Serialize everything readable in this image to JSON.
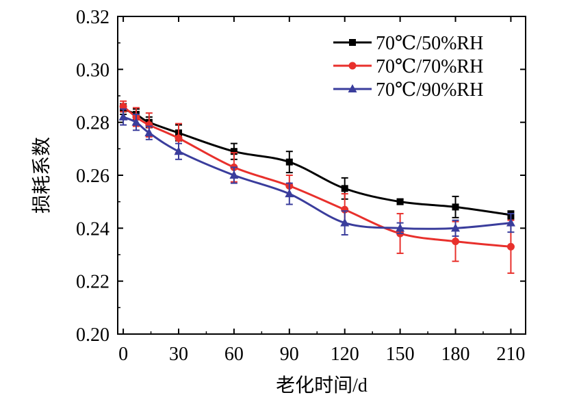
{
  "chart_data": {
    "type": "line",
    "title": "",
    "xlabel": "老化时间/d",
    "ylabel": "损耗系数",
    "x_ticks": [
      "0",
      "30",
      "60",
      "90",
      "120",
      "150",
      "180",
      "210"
    ],
    "y_ticks": [
      "0.20",
      "0.22",
      "0.24",
      "0.26",
      "0.28",
      "0.30",
      "0.32"
    ],
    "xlim": [
      -3,
      218
    ],
    "ylim": [
      0.2,
      0.32
    ],
    "grid": false,
    "legend_position": "top-right",
    "series": [
      {
        "name": "70℃/50%RH",
        "color": "#000000",
        "marker": "square",
        "x": [
          0,
          7,
          14,
          30,
          60,
          90,
          120,
          150,
          180,
          210
        ],
        "y": [
          0.285,
          0.283,
          0.28,
          0.276,
          0.269,
          0.265,
          0.255,
          0.25,
          0.248,
          0.245
        ],
        "err": [
          0.002,
          0.002,
          0.002,
          0.003,
          0.003,
          0.004,
          0.004,
          0.001,
          0.004,
          0.0015
        ]
      },
      {
        "name": "70℃/70%RH",
        "color": "#e8302c",
        "marker": "circle",
        "x": [
          0,
          7,
          14,
          30,
          60,
          90,
          120,
          150,
          180,
          210
        ],
        "y": [
          0.286,
          0.282,
          0.279,
          0.274,
          0.263,
          0.256,
          0.247,
          0.238,
          0.235,
          0.233
        ],
        "err": [
          0.002,
          0.0035,
          0.0045,
          0.0055,
          0.0055,
          0.004,
          0.006,
          0.0075,
          0.0075,
          0.01
        ]
      },
      {
        "name": "70℃/90%RH",
        "color": "#3a3d9c",
        "marker": "triangle",
        "x": [
          0,
          7,
          14,
          30,
          60,
          90,
          120,
          150,
          180,
          210
        ],
        "y": [
          0.282,
          0.28,
          0.276,
          0.269,
          0.26,
          0.253,
          0.242,
          0.24,
          0.24,
          0.242
        ],
        "err": [
          0.003,
          0.003,
          0.0025,
          0.003,
          0.003,
          0.004,
          0.0045,
          0.002,
          0.003,
          0.0035
        ]
      }
    ]
  }
}
